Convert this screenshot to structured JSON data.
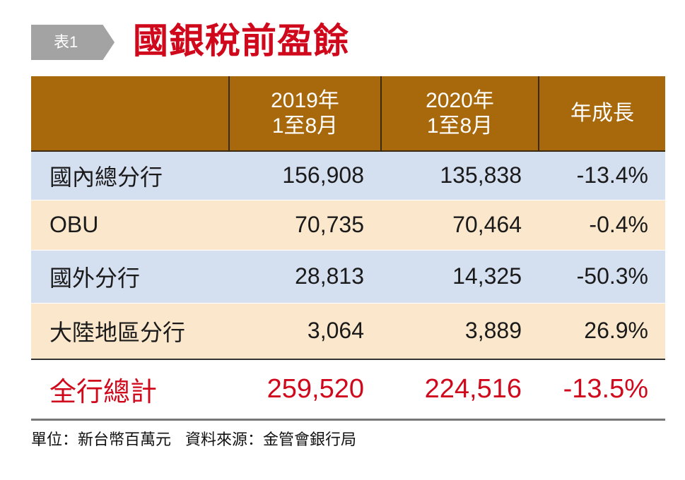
{
  "tag": "表1",
  "title": "國銀稅前盈餘",
  "chart_data": {
    "type": "table",
    "title": "國銀稅前盈餘",
    "columns": [
      "",
      "2019年\n1至8月",
      "2020年\n1至8月",
      "年成長"
    ],
    "header": {
      "col1_line1": "2019年",
      "col1_line2": "1至8月",
      "col2_line1": "2020年",
      "col2_line2": "1至8月",
      "col3": "年成長"
    },
    "rows": [
      [
        "國內總分行",
        "156,908",
        "135,838",
        "-13.4%"
      ],
      [
        "OBU",
        "70,735",
        "70,464",
        "-0.4%"
      ],
      [
        "國外分行",
        "28,813",
        "14,325",
        "-50.3%"
      ],
      [
        "大陸地區分行",
        "3,064",
        "3,889",
        "26.9%"
      ]
    ],
    "total": [
      "全行總計",
      "259,520",
      "224,516",
      "-13.5%"
    ]
  },
  "footer": {
    "unit": "單位：新台幣百萬元",
    "source": "資料來源：金管會銀行局"
  },
  "colors": {
    "header": "#a8690c",
    "row_blue": "#d4dff0",
    "row_cream": "#fbe8cc",
    "accent_red": "#d0081c"
  }
}
